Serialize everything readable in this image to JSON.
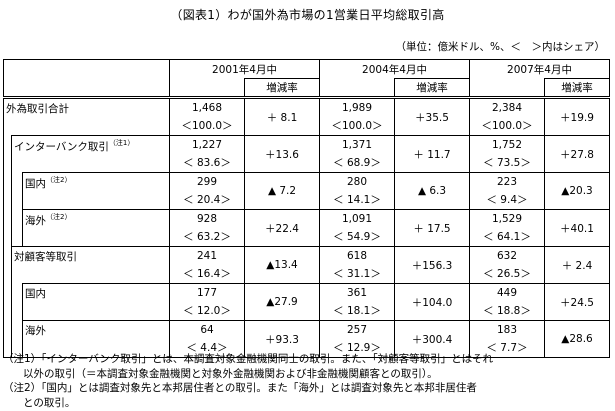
{
  "title": "（図表1）わが国外為市場の1営業日平均総取引高",
  "unit_note": "（単位：億米ドル、%、＜　＞内はシェア）",
  "columns": {
    "y2001": "2001年4月中",
    "y2004": "2004年4月中",
    "y2007": "2007年4月中",
    "change": "増減率"
  },
  "rows": [
    {
      "label": "外為取引合計",
      "note": "",
      "v2001": "1,468",
      "s2001": "＜100.0＞",
      "c2001": "＋ 8.1",
      "v2004": "1,989",
      "s2004": "＜100.0＞",
      "c2004": "＋35.5",
      "v2007": "2,384",
      "s2007": "＜100.0＞",
      "c2007": "＋19.9"
    },
    {
      "label": "インターバンク取引",
      "note": "（注1）",
      "v2001": "1,227",
      "s2001": "＜ 83.6＞",
      "c2001": "＋13.6",
      "v2004": "1,371",
      "s2004": "＜ 68.9＞",
      "c2004": "＋ 11.7",
      "v2007": "1,752",
      "s2007": "＜ 73.5＞",
      "c2007": "＋27.8"
    },
    {
      "label": "国内",
      "note": "（注2）",
      "v2001": "299",
      "s2001": "＜ 20.4＞",
      "c2001": "▲ 7.2",
      "v2004": "280",
      "s2004": "＜ 14.1＞",
      "c2004": "▲ 6.3",
      "v2007": "223",
      "s2007": "＜ 9.4＞",
      "c2007": "▲20.3"
    },
    {
      "label": "海外",
      "note": "（注2）",
      "v2001": "928",
      "s2001": "＜ 63.2＞",
      "c2001": "＋22.4",
      "v2004": "1,091",
      "s2004": "＜ 54.9＞",
      "c2004": "＋ 17.5",
      "v2007": "1,529",
      "s2007": "＜ 64.1＞",
      "c2007": "＋40.1"
    },
    {
      "label": "対顧客等取引",
      "note": "",
      "v2001": "241",
      "s2001": "＜ 16.4＞",
      "c2001": "▲13.4",
      "v2004": "618",
      "s2004": "＜ 31.1＞",
      "c2004": "＋156.3",
      "v2007": "632",
      "s2007": "＜ 26.5＞",
      "c2007": "＋ 2.4"
    },
    {
      "label": "国内",
      "note": "",
      "v2001": "177",
      "s2001": "＜ 12.0＞",
      "c2001": "▲27.9",
      "v2004": "361",
      "s2004": "＜ 18.1＞",
      "c2004": "＋104.0",
      "v2007": "449",
      "s2007": "＜ 18.8＞",
      "c2007": "＋24.5"
    },
    {
      "label": "海外",
      "note": "",
      "v2001": "64",
      "s2001": "＜ 4.4＞",
      "c2001": "＋93.3",
      "v2004": "257",
      "s2004": "＜ 12.9＞",
      "c2004": "＋300.4",
      "v2007": "183",
      "s2007": "＜ 7.7＞",
      "c2007": "▲28.6"
    }
  ],
  "notes": [
    "（注1）「インターバンク取引」とは、本調査対象金融機関同士の取引。また、「対顧客等取引」とはそれ",
    "以外の取引（＝本調査対象金融機関と対象外金融機関および非金融機関顧客との取引）。",
    "（注2）「国内」とは調査対象先と本邦居住者との取引。また「海外」とは調査対象先と本邦非居住者",
    "との取引。"
  ]
}
